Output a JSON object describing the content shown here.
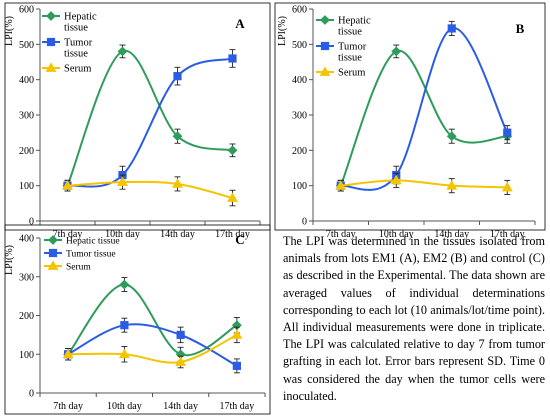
{
  "colors": {
    "hepatic": "#2e9c5b",
    "tumor": "#2b5ce6",
    "serum": "#f5c400",
    "axis": "#333333",
    "grid": "#000000"
  },
  "chart_data": [
    {
      "type": "line",
      "panel_label": "A",
      "ylabel": "LPI(%)",
      "ylim": [
        0,
        600
      ],
      "yticks": [
        0,
        100,
        200,
        300,
        400,
        500,
        600
      ],
      "categories": [
        "7th day",
        "10th day",
        "14th day",
        "17th day"
      ],
      "legend": "top-left",
      "series": [
        {
          "name": "Hepatic tissue",
          "marker": "diamond",
          "color": "#2e9c5b",
          "values": [
            100,
            480,
            240,
            200
          ],
          "errors": [
            15,
            18,
            20,
            18
          ]
        },
        {
          "name": "Tumor tissue",
          "marker": "square",
          "color": "#2b5ce6",
          "values": [
            100,
            130,
            410,
            460
          ],
          "errors": [
            15,
            25,
            25,
            25
          ]
        },
        {
          "name": "Serum",
          "marker": "triangle",
          "color": "#f5c400",
          "values": [
            100,
            110,
            105,
            65
          ],
          "errors": [
            15,
            20,
            20,
            22
          ]
        }
      ]
    },
    {
      "type": "line",
      "panel_label": "B",
      "ylabel": "LPI(%)",
      "ylim": [
        0,
        600
      ],
      "yticks": [
        0,
        100,
        200,
        300,
        400,
        500,
        600
      ],
      "categories": [
        "7th day",
        "10th day",
        "14th day",
        "17th day"
      ],
      "legend": "top-left",
      "series": [
        {
          "name": "Hepatic tissue",
          "marker": "diamond",
          "color": "#2e9c5b",
          "values": [
            100,
            480,
            240,
            240
          ],
          "errors": [
            15,
            18,
            20,
            20
          ]
        },
        {
          "name": "Tumor tissue",
          "marker": "square",
          "color": "#2b5ce6",
          "values": [
            100,
            130,
            545,
            250
          ],
          "errors": [
            15,
            25,
            20,
            20
          ]
        },
        {
          "name": "Serum",
          "marker": "triangle",
          "color": "#f5c400",
          "values": [
            100,
            115,
            100,
            95
          ],
          "errors": [
            15,
            20,
            20,
            20
          ]
        }
      ]
    },
    {
      "type": "line",
      "panel_label": "C",
      "ylabel": "LPI(%)",
      "ylim": [
        0,
        400
      ],
      "yticks": [
        0,
        100,
        200,
        300,
        400
      ],
      "categories": [
        "7th day",
        "10th day",
        "14th day",
        "17th day"
      ],
      "legend": "top-left",
      "series": [
        {
          "name": "Hepatic tissue",
          "marker": "diamond",
          "color": "#2e9c5b",
          "values": [
            100,
            280,
            100,
            175
          ],
          "errors": [
            15,
            18,
            18,
            20
          ]
        },
        {
          "name": "Tumor tissue",
          "marker": "square",
          "color": "#2b5ce6",
          "values": [
            100,
            175,
            150,
            70
          ],
          "errors": [
            15,
            18,
            20,
            18
          ]
        },
        {
          "name": "Serum",
          "marker": "triangle",
          "color": "#f5c400",
          "values": [
            100,
            100,
            80,
            150
          ],
          "errors": [
            15,
            20,
            15,
            20
          ]
        }
      ]
    }
  ],
  "caption": "The LPI was determined in the tissues isolated from animals from lots EM1 (A), EM2 (B) and control (C) as described in the Experimental. The data shown are averaged values of individual determinations corresponding to each lot (10 animals/lot/time point). All individual measurements were done in triplicate. The LPI was calculated relative to day 7 from tumor grafting in each lot. Error bars represent SD. Time 0 was considered the day when the tumor cells were inoculated."
}
